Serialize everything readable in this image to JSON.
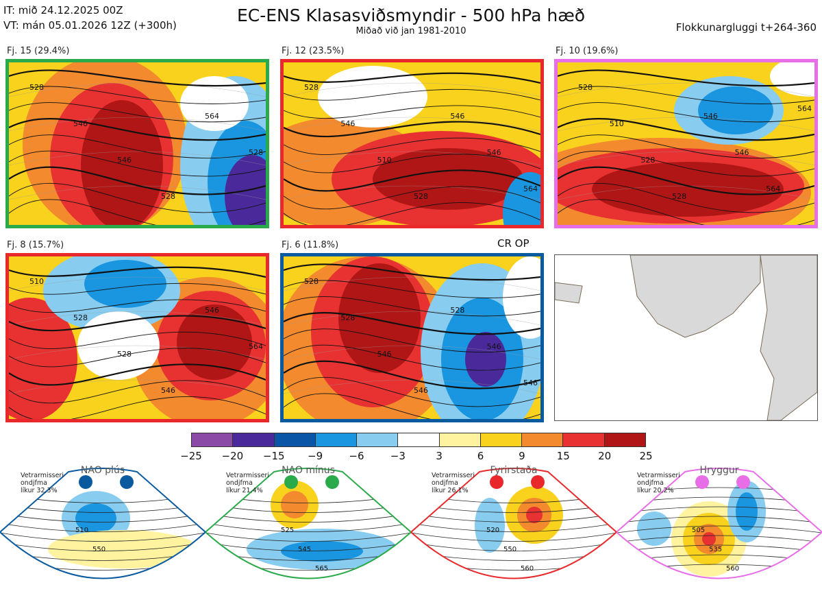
{
  "header": {
    "it_line": "IT: mið 24.12.2025 00Z",
    "vt_line": "VT: mán 05.01.2026 12Z  (+300h)",
    "title": "EC-ENS Klasasviðsmyndir - 500 hPa hæð",
    "subtitle": "Miðað við jan 1981-2010",
    "window_label": "Flokkunargluggi t+264-360"
  },
  "chart_data": {
    "type": "heatmap",
    "title": "EC-ENS Klasasviðsmyndir - 500 hPa hæð",
    "subtitle": "Miðað við jan 1981-2010",
    "panels": [
      {
        "label": "Fj. 15 (29.4%)",
        "members": 15,
        "percent": 29.4,
        "regime": "NAO mínus",
        "border": "#2aaa4a",
        "contour_labels": [
          "528",
          "546",
          "546",
          "528",
          "564",
          "528"
        ]
      },
      {
        "label": "Fj. 12 (23.5%)",
        "members": 12,
        "percent": 23.5,
        "regime": "Fyrirstaða",
        "border": "#e8282b",
        "contour_labels": [
          "528",
          "546",
          "510",
          "528",
          "546",
          "546",
          "564"
        ]
      },
      {
        "label": "Fj. 10 (19.6%)",
        "members": 10,
        "percent": 19.6,
        "regime": "Hryggur",
        "border": "#e86ee8",
        "contour_labels": [
          "528",
          "510",
          "528",
          "528",
          "546",
          "546",
          "564",
          "564"
        ]
      },
      {
        "label": "Fj. 8 (15.7%)",
        "members": 8,
        "percent": 15.7,
        "regime": "Fyrirstaða",
        "border": "#e8282b",
        "contour_labels": [
          "510",
          "528",
          "528",
          "546",
          "546",
          "564"
        ]
      },
      {
        "label": "Fj. 6 (11.8%)",
        "members": 6,
        "percent": 11.8,
        "regime": "NAO plús",
        "border": "#0a5aa0",
        "contour_labels": [
          "528",
          "528",
          "546",
          "546",
          "528",
          "546",
          "546"
        ]
      }
    ],
    "op_label": "CR OP",
    "colorbar": {
      "ticks": [
        "−25",
        "−20",
        "−15",
        "−9",
        "−6",
        "−3",
        "3",
        "6",
        "9",
        "15",
        "20",
        "25"
      ],
      "colors": [
        "#8a4aa6",
        "#4a2a9a",
        "#0a55a5",
        "#1a96e0",
        "#88ccf0",
        "#ffffff",
        "#fff3a0",
        "#f9d21e",
        "#f38a2e",
        "#e83232",
        "#b11616"
      ]
    },
    "regimes": [
      {
        "name": "NAO plús",
        "info": [
          "Vetrarmisseri",
          "ondjfma",
          "líkur 32,3%"
        ],
        "color": "#0a5aa0",
        "contour_labels": [
          "510",
          "550"
        ]
      },
      {
        "name": "NAO mínus",
        "info": [
          "Vetrarmisseri",
          "ondjfma",
          "líkur 21,4%"
        ],
        "color": "#2aaa4a",
        "contour_labels": [
          "525",
          "545",
          "565"
        ]
      },
      {
        "name": "Fyrirstaða",
        "info": [
          "Vetrarmisseri",
          "ondjfma",
          "líkur 26,1%"
        ],
        "color": "#e8282b",
        "contour_labels": [
          "520",
          "550",
          "560"
        ]
      },
      {
        "name": "Hryggur",
        "info": [
          "Vetrarmisseri",
          "ondjfma",
          "líkur 20,2%"
        ],
        "color": "#e86ee8",
        "contour_labels": [
          "505",
          "535",
          "560"
        ]
      }
    ]
  }
}
